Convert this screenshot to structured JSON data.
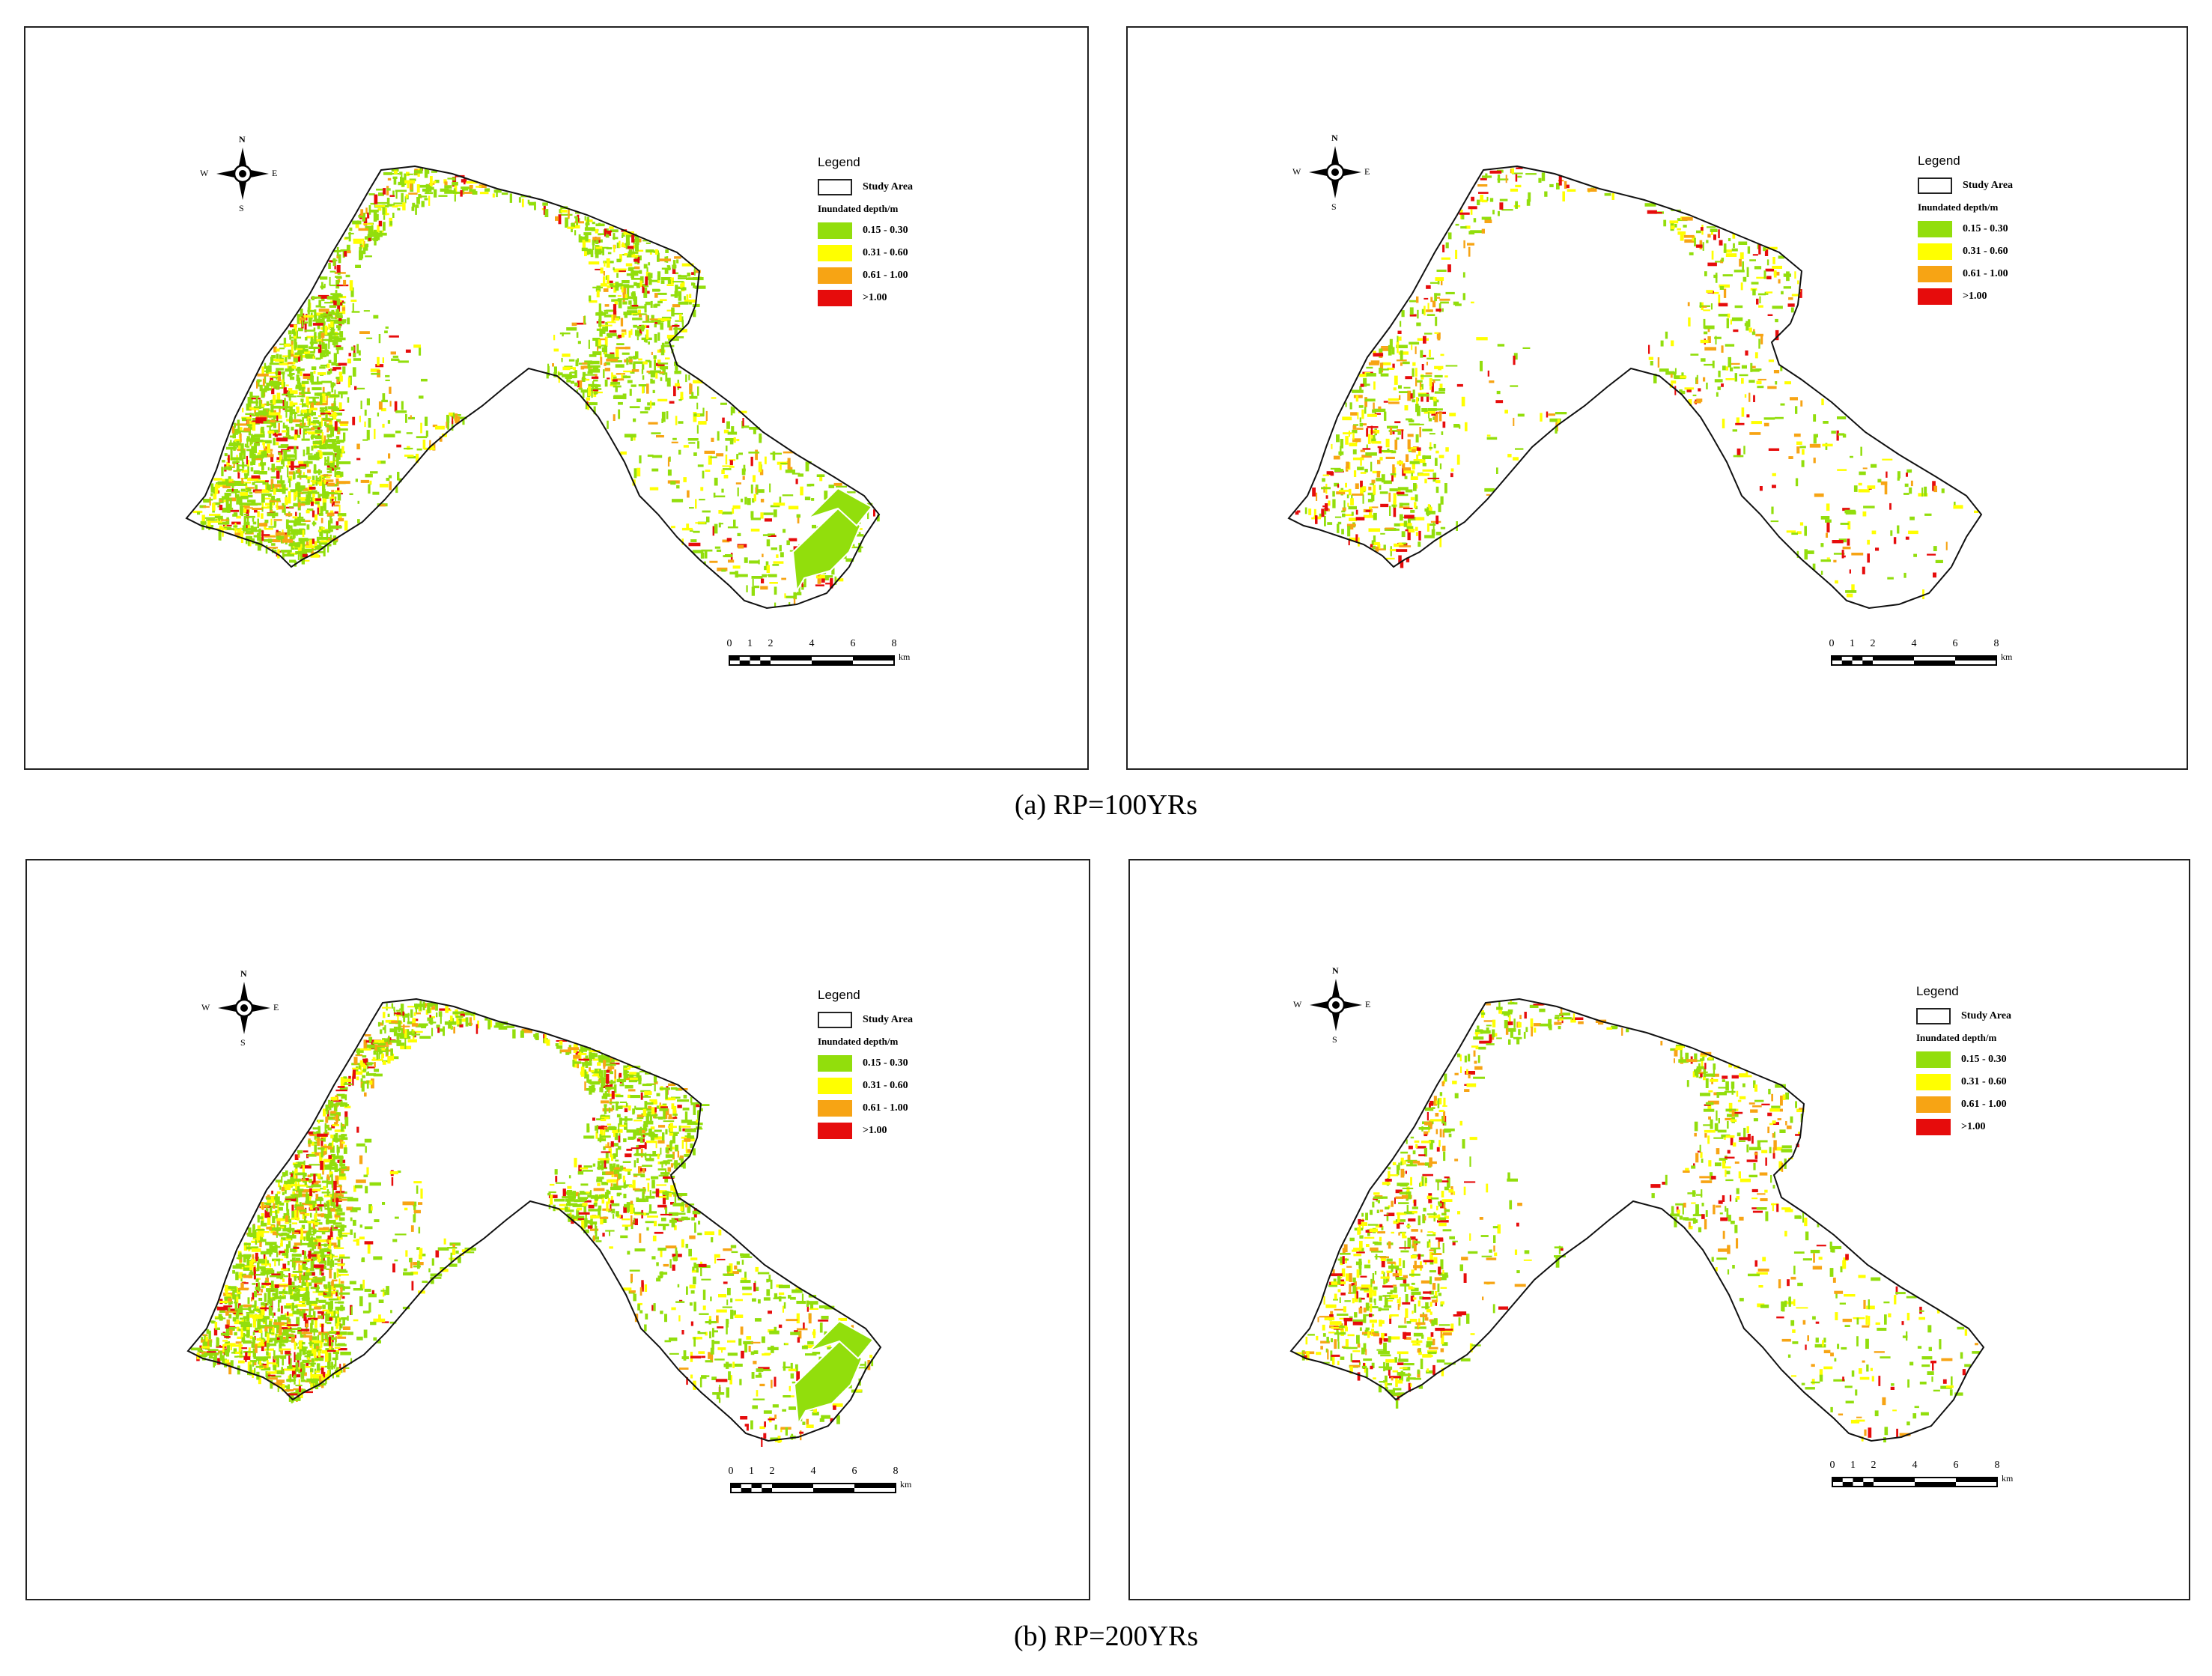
{
  "figure": {
    "captions": {
      "row_a": "(a) RP=100YRs",
      "row_b": "(b) RP=200YRs"
    }
  },
  "map": {
    "compass": {
      "n": "N",
      "s": "S",
      "e": "E",
      "w": "W"
    },
    "legend": {
      "title": "Legend",
      "boundary_label": "Study Area",
      "depth_heading": "Inundated depth/m",
      "classes": [
        {
          "label": "0.15 - 0.30",
          "color": "#92de0c"
        },
        {
          "label": "0.31 - 0.60",
          "color": "#ffff00"
        },
        {
          "label": "0.61 - 1.00",
          "color": "#f7a414"
        },
        {
          "label": ">1.00",
          "color": "#e60c0c"
        }
      ]
    },
    "scalebar": {
      "ticks": [
        "0",
        "1",
        "2",
        "4",
        "6",
        "8"
      ],
      "unit": "km"
    }
  },
  "panels": [
    {
      "row": "a",
      "column": "left"
    },
    {
      "row": "a",
      "column": "right"
    },
    {
      "row": "b",
      "column": "left"
    },
    {
      "row": "b",
      "column": "right"
    }
  ]
}
